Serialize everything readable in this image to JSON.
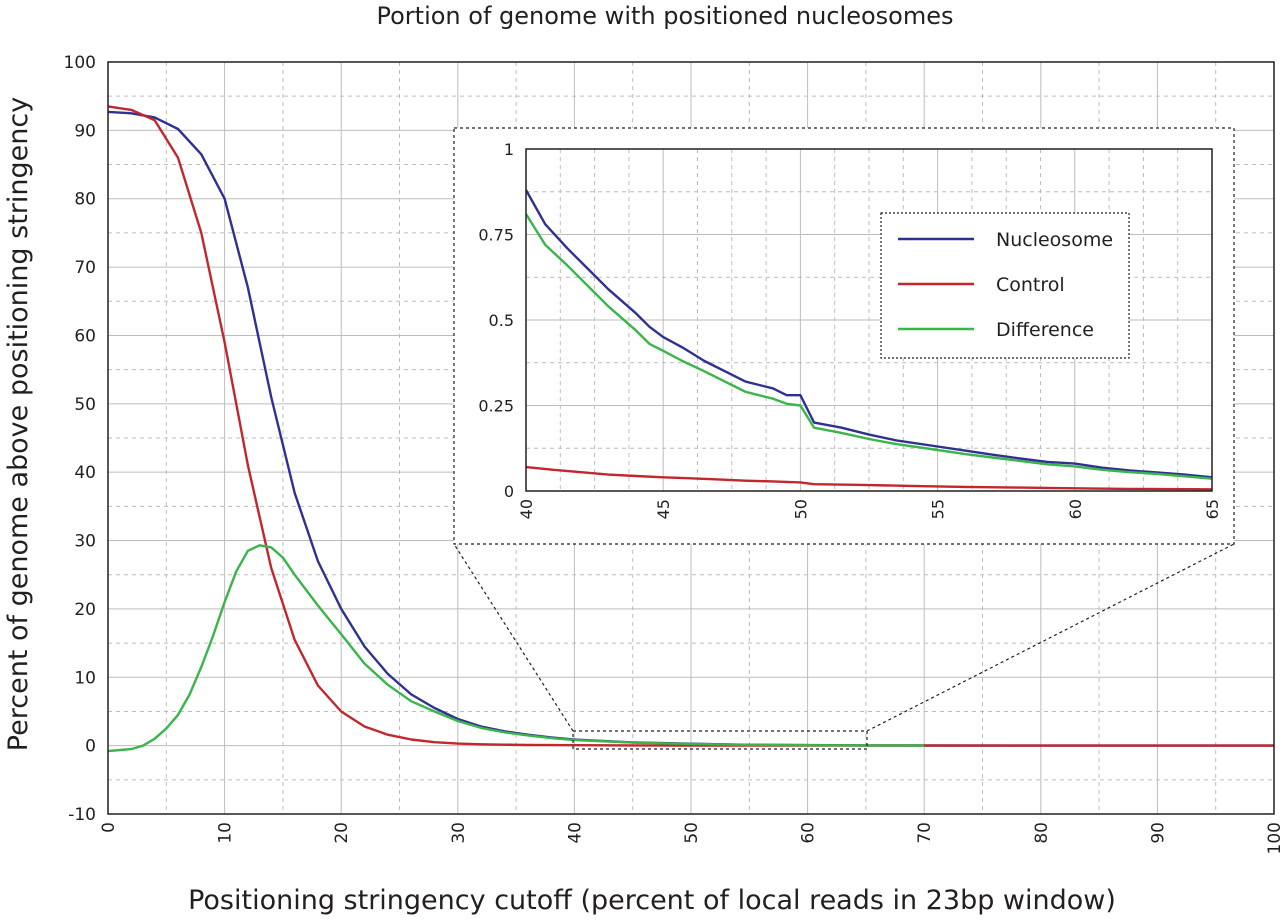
{
  "chart_data": {
    "type": "line",
    "title": "Portion of genome with positioned nucleosomes",
    "xlabel": "Positioning stringency cutoff (percent of local reads in 23bp window)",
    "ylabel": "Percent of genome above positioning stringency",
    "xlim": [
      0,
      100
    ],
    "ylim": [
      -10,
      100
    ],
    "x_ticks": [
      "0",
      "10",
      "20",
      "30",
      "40",
      "50",
      "60",
      "70",
      "80",
      "90",
      "100"
    ],
    "y_ticks": [
      "-10",
      "0",
      "10",
      "20",
      "30",
      "40",
      "50",
      "60",
      "70",
      "80",
      "90",
      "100"
    ],
    "grid": true,
    "series": [
      {
        "name": "Nucleosome",
        "color": "#2e3192",
        "x": [
          0,
          2,
          4,
          6,
          8,
          10,
          12,
          14,
          16,
          18,
          20,
          22,
          24,
          26,
          28,
          30,
          32,
          34,
          36,
          38,
          40,
          45,
          50,
          55,
          60,
          65,
          70,
          80,
          90,
          100
        ],
        "y": [
          92.7,
          92.5,
          91.9,
          90.2,
          86.5,
          80,
          67,
          51,
          37,
          27,
          20,
          14.5,
          10.5,
          7.5,
          5.5,
          3.9,
          2.8,
          2.1,
          1.6,
          1.2,
          0.88,
          0.48,
          0.28,
          0.12,
          0.08,
          0.04,
          0.02,
          0.01,
          0,
          0
        ]
      },
      {
        "name": "Control",
        "color": "#c1272d",
        "x": [
          0,
          2,
          4,
          6,
          8,
          10,
          12,
          14,
          16,
          18,
          20,
          22,
          24,
          26,
          28,
          30,
          32,
          34,
          36,
          38,
          40,
          45,
          50,
          55,
          60,
          65,
          70,
          80,
          90,
          100
        ],
        "y": [
          93.5,
          93,
          91.5,
          86,
          75,
          59,
          41,
          26,
          15.5,
          8.8,
          5,
          2.8,
          1.6,
          0.9,
          0.5,
          0.3,
          0.2,
          0.13,
          0.1,
          0.08,
          0.07,
          0.04,
          0.025,
          0.012,
          0.008,
          0.005,
          0.004,
          0,
          0,
          0
        ]
      },
      {
        "name": "Difference",
        "color": "#39b54a",
        "x": [
          0,
          2,
          3,
          4,
          5,
          6,
          7,
          8,
          9,
          10,
          11,
          12,
          13,
          14,
          15,
          16,
          18,
          20,
          22,
          24,
          26,
          28,
          30,
          32,
          34,
          36,
          38,
          40,
          45,
          50,
          55,
          60,
          65,
          70
        ],
        "y": [
          -0.8,
          -0.5,
          0,
          1,
          2.5,
          4.5,
          7.5,
          11.5,
          16,
          21,
          25.5,
          28.5,
          29.3,
          29,
          27.5,
          25,
          20.5,
          16.3,
          12,
          8.9,
          6.5,
          5,
          3.6,
          2.6,
          1.95,
          1.5,
          1.1,
          0.81,
          0.44,
          0.25,
          0.11,
          0.07,
          0.035,
          0.02
        ]
      }
    ],
    "inset": {
      "xlim": [
        40,
        65
      ],
      "ylim": [
        0,
        1
      ],
      "x_ticks": [
        "40",
        "45",
        "50",
        "55",
        "60",
        "65"
      ],
      "y_ticks": [
        "0",
        "0.25",
        "0.5",
        "0.75",
        "1"
      ],
      "legend_position": "top-right",
      "series": [
        {
          "name": "Nucleosome",
          "color": "#2e3192",
          "x": [
            40,
            40.7,
            41.5,
            42.5,
            43,
            44,
            44.5,
            45,
            45.7,
            46.5,
            47.5,
            48,
            49,
            49.5,
            50,
            50.5,
            51.5,
            52.5,
            53.5,
            55,
            56,
            57,
            58,
            59,
            60,
            61,
            62,
            63,
            64,
            65
          ],
          "y": [
            0.88,
            0.78,
            0.71,
            0.63,
            0.59,
            0.52,
            0.48,
            0.45,
            0.42,
            0.38,
            0.34,
            0.32,
            0.3,
            0.28,
            0.28,
            0.2,
            0.185,
            0.165,
            0.148,
            0.13,
            0.118,
            0.106,
            0.095,
            0.085,
            0.08,
            0.068,
            0.06,
            0.054,
            0.048,
            0.04
          ]
        },
        {
          "name": "Control",
          "color": "#c1272d",
          "x": [
            40,
            41,
            42,
            43,
            44,
            45,
            46,
            47,
            48,
            49,
            50,
            50.5,
            52,
            54,
            56,
            58,
            60,
            62,
            65
          ],
          "y": [
            0.07,
            0.062,
            0.055,
            0.048,
            0.044,
            0.04,
            0.037,
            0.034,
            0.03,
            0.028,
            0.025,
            0.02,
            0.018,
            0.015,
            0.012,
            0.01,
            0.008,
            0.006,
            0.005
          ]
        },
        {
          "name": "Difference",
          "color": "#39b54a",
          "x": [
            40,
            40.7,
            41.5,
            42.5,
            43,
            44,
            44.5,
            45,
            45.7,
            46.5,
            47.5,
            48,
            49,
            49.5,
            50,
            50.5,
            51.5,
            52.5,
            53.5,
            55,
            56,
            57,
            58,
            59,
            60,
            61,
            62,
            63,
            64,
            65
          ],
          "y": [
            0.81,
            0.72,
            0.66,
            0.58,
            0.54,
            0.47,
            0.43,
            0.41,
            0.38,
            0.35,
            0.31,
            0.29,
            0.27,
            0.255,
            0.25,
            0.185,
            0.17,
            0.152,
            0.137,
            0.12,
            0.108,
            0.098,
            0.088,
            0.078,
            0.072,
            0.062,
            0.055,
            0.05,
            0.043,
            0.036
          ]
        }
      ]
    }
  }
}
